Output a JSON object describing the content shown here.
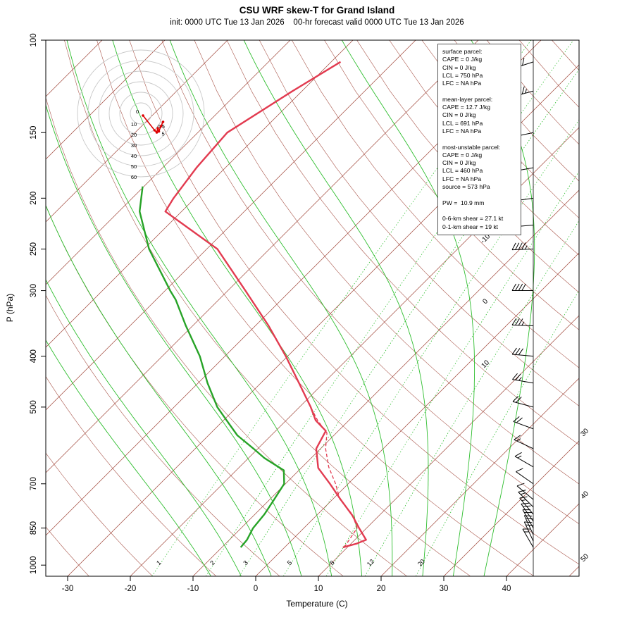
{
  "title": "CSU WRF skew-T for Grand Island",
  "subtitle": "init: 0000 UTC Tue 13 Jan 2026    00-hr forecast valid 0000 UTC Tue 13 Jan 2026",
  "axes": {
    "x_label": "Temperature (C)",
    "y_label": "P (hPa)",
    "x_ticks": [
      -30,
      -20,
      -10,
      0,
      10,
      20,
      30,
      40
    ],
    "y_ticks": [
      100,
      150,
      200,
      250,
      300,
      400,
      500,
      700,
      850,
      1000
    ]
  },
  "colors": {
    "background_red": "#a1463a",
    "background_green": "#2fbe2f",
    "profile_red": "#e23b50",
    "profile_green": "#27a327",
    "hodo_red": "#dd0000",
    "frame": "#000000"
  },
  "background": {
    "isotherm_min": -120,
    "isotherm_max": 50,
    "isotherm_step": 10,
    "isotherm_labels_inner": [
      -10,
      0,
      10
    ],
    "isotherm_labels_outer": [
      30,
      40,
      50
    ],
    "dry_adiabats": [
      -50,
      -40,
      -30,
      -20,
      -10,
      0,
      10,
      20,
      30,
      40,
      50,
      60,
      70,
      80,
      90,
      100,
      110,
      120,
      130,
      140,
      150,
      160,
      170,
      180,
      190
    ],
    "moist_adiabats": [
      -10,
      -5,
      0,
      5,
      10,
      15,
      20,
      25,
      30,
      35
    ],
    "mixing_ratio": [
      1,
      2,
      3,
      5,
      8,
      12,
      20
    ]
  },
  "chart_data": {
    "type": "skew-t-log-p",
    "title": "CSU WRF skew-T for Grand Island",
    "xlabel": "Temperature (C)",
    "ylabel": "P (hPa)",
    "xlim": [
      -35,
      45
    ],
    "ylim": [
      1050,
      100
    ],
    "units": {
      "temperature": "C",
      "pressure": "hPa",
      "wind": "kt"
    },
    "temperature": {
      "pressure": [
        925,
        910,
        895,
        850,
        804,
        750,
        700,
        653,
        600,
        555,
        530,
        500,
        450,
        400,
        350,
        300,
        250,
        212,
        200,
        175,
        150,
        125,
        110
      ],
      "values": [
        9.3,
        10.9,
        11.8,
        8.8,
        5.7,
        1.3,
        -2.9,
        -7.3,
        -10.7,
        -12.0,
        -15.3,
        -18.2,
        -23.9,
        -30.3,
        -37.9,
        -47.2,
        -58.3,
        -72.6,
        -73.4,
        -74.6,
        -75.3,
        -71.5,
        -68.5
      ]
    },
    "dewpoint": {
      "pressure": [
        925,
        895,
        850,
        800,
        750,
        700,
        660,
        625,
        600,
        566,
        530,
        500,
        450,
        400,
        350,
        312,
        300,
        250,
        212,
        190
      ],
      "values": [
        -7.0,
        -7.2,
        -8.1,
        -8.5,
        -9.3,
        -10.2,
        -12.4,
        -17.5,
        -20.7,
        -25.4,
        -29.5,
        -33.1,
        -38.5,
        -44.0,
        -51.1,
        -56.9,
        -59.2,
        -69.2,
        -76.7,
        -80.2
      ]
    },
    "parcel": {
      "pressure": [
        925,
        850,
        800,
        750,
        700,
        650,
        600,
        560,
        530,
        500
      ],
      "values": [
        9.5,
        8.5,
        5.5,
        1.2,
        -2.0,
        -5.8,
        -9.2,
        -11.5,
        -15.0,
        -18.2
      ]
    },
    "winds": [
      {
        "p": 925,
        "dir": 330,
        "spd": 15
      },
      {
        "p": 900,
        "dir": 335,
        "spd": 20
      },
      {
        "p": 875,
        "dir": 335,
        "spd": 20
      },
      {
        "p": 850,
        "dir": 330,
        "spd": 20
      },
      {
        "p": 825,
        "dir": 325,
        "spd": 20
      },
      {
        "p": 800,
        "dir": 320,
        "spd": 15
      },
      {
        "p": 775,
        "dir": 315,
        "spd": 15
      },
      {
        "p": 750,
        "dir": 310,
        "spd": 10
      },
      {
        "p": 700,
        "dir": 305,
        "spd": 10
      },
      {
        "p": 650,
        "dir": 300,
        "spd": 15
      },
      {
        "p": 600,
        "dir": 295,
        "spd": 15
      },
      {
        "p": 550,
        "dir": 290,
        "spd": 20
      },
      {
        "p": 500,
        "dir": 285,
        "spd": 20
      },
      {
        "p": 450,
        "dir": 280,
        "spd": 25
      },
      {
        "p": 400,
        "dir": 275,
        "spd": 30
      },
      {
        "p": 350,
        "dir": 272,
        "spd": 35
      },
      {
        "p": 300,
        "dir": 270,
        "spd": 40
      },
      {
        "p": 250,
        "dir": 268,
        "spd": 45
      },
      {
        "p": 225,
        "dir": 265,
        "spd": 50
      },
      {
        "p": 200,
        "dir": 262,
        "spd": 55
      },
      {
        "p": 175,
        "dir": 260,
        "spd": 60
      },
      {
        "p": 150,
        "dir": 258,
        "spd": 55
      },
      {
        "p": 125,
        "dir": 255,
        "spd": 45
      },
      {
        "p": 110,
        "dir": 252,
        "spd": 40
      }
    ]
  },
  "hodograph": {
    "rings": [
      10,
      20,
      30,
      40,
      50,
      60
    ],
    "trace": [
      {
        "u": 2,
        "v": -2,
        "label": "0"
      },
      {
        "u": 13,
        "v": -16,
        "label": "0.5"
      },
      {
        "u": 15,
        "v": -18
      },
      {
        "u": 16,
        "v": -14
      },
      {
        "u": 17,
        "v": -17,
        "label": "5"
      },
      {
        "u": 19,
        "v": -12
      },
      {
        "u": 21,
        "v": -8
      }
    ]
  },
  "info_box": {
    "lines": [
      "surface parcel:",
      "CAPE = 0 J/kg",
      "CIN = 0 J/kg",
      "LCL = 750 hPa",
      "LFC = NA hPa",
      "",
      "mean-layer parcel:",
      "CAPE = 12.7 J/kg",
      "CIN = 0 J/kg",
      "LCL = 691 hPa",
      "LFC = NA hPa",
      "",
      "most-unstable parcel:",
      "CAPE = 0 J/kg",
      "CIN = 0 J/kg",
      "LCL = 460 hPa",
      "LFC = NA hPa",
      "source = 573 hPa",
      "",
      "PW =  10.9 mm",
      "",
      "0-6-km shear = 27.1 kt",
      "0-1-km shear = 19 kt"
    ]
  }
}
